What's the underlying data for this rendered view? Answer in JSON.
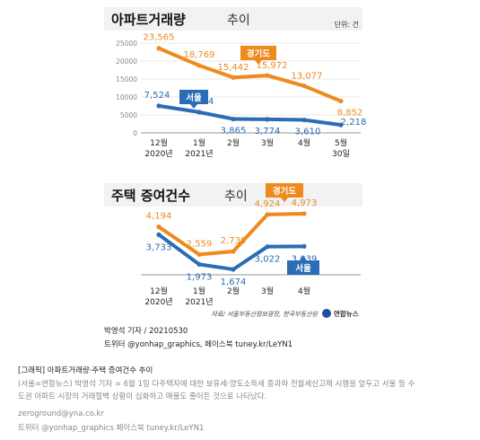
{
  "graphic": {
    "unit_label": "단위: 건",
    "source": "자료/ 서울부동산정보광장, 한국부동산원",
    "agency": "연합뉴스"
  },
  "byline": {
    "author_date": "박영석 기자 / 20210530",
    "social": "트위터 @yonhap_graphics, 페이스북 tuney.kr/LeYN1"
  },
  "caption": {
    "title": "[그래픽] 아파트거래량·주택 증여건수 추이",
    "body_1": "(서울=연합뉴스) 박영석 기자 = 6월 1일 다주택자에 대한 보유세·양도소득세 중과와 전월세신고제 시행을 앞두고 서울 등 수",
    "body_2": "도권 아파트 시장의 거래절벽 상황이 심화하고 매물도 줄어든 것으로 나타났다.",
    "email": "zeroground@yna.co.kr",
    "social": "트위터 @yonhap_graphics 페이스북 tuney.kr/LeYN1"
  },
  "colors": {
    "orange": "#ee8a1e",
    "blue": "#2a6cb5",
    "title_band": "#f1f2f3",
    "agency_blue": "#1f4f9b"
  },
  "chart_data": [
    {
      "type": "line",
      "title": "아파트거래량",
      "title_suffix": "추이",
      "categories": [
        [
          "12월",
          "2020년"
        ],
        [
          "1월",
          "2021년"
        ],
        [
          "2월",
          ""
        ],
        [
          "3월",
          ""
        ],
        [
          "4월",
          ""
        ],
        [
          "5월",
          "30일"
        ]
      ],
      "yticks": [
        0,
        5000,
        10000,
        15000,
        20000,
        25000
      ],
      "ylim": [
        0,
        25000
      ],
      "grid": true,
      "series": [
        {
          "name": "경기도",
          "color": "#ee8a1e",
          "values": [
            23565,
            18769,
            15442,
            15972,
            13077,
            8852
          ],
          "labels": [
            "23,565",
            "18,769",
            "15,442",
            "15,972",
            "13,077",
            "8,852"
          ]
        },
        {
          "name": "서울",
          "color": "#2a6cb5",
          "values": [
            7524,
            5774,
            3865,
            3774,
            3610,
            2218
          ],
          "labels": [
            "7,524",
            "5,774",
            "3,865",
            "3,774",
            "3,610",
            "2,218"
          ]
        }
      ]
    },
    {
      "type": "line",
      "title": "주택 증여건수",
      "title_suffix": "추이",
      "categories": [
        [
          "12월",
          "2020년"
        ],
        [
          "1월",
          "2021년"
        ],
        [
          "2월",
          ""
        ],
        [
          "3월",
          ""
        ],
        [
          "4월",
          ""
        ]
      ],
      "ylim": [
        1000,
        5500
      ],
      "grid": false,
      "series": [
        {
          "name": "경기도",
          "color": "#ee8a1e",
          "values": [
            4194,
            2559,
            2739,
            4924,
            4973
          ],
          "labels": [
            "4,194",
            "2,559",
            "2,739",
            "4,924",
            "4,973"
          ]
        },
        {
          "name": "서울",
          "color": "#2a6cb5",
          "values": [
            3733,
            1973,
            1674,
            3022,
            3039
          ],
          "labels": [
            "3,733",
            "1,973",
            "1,674",
            "3,022",
            "3,039"
          ]
        }
      ]
    }
  ]
}
